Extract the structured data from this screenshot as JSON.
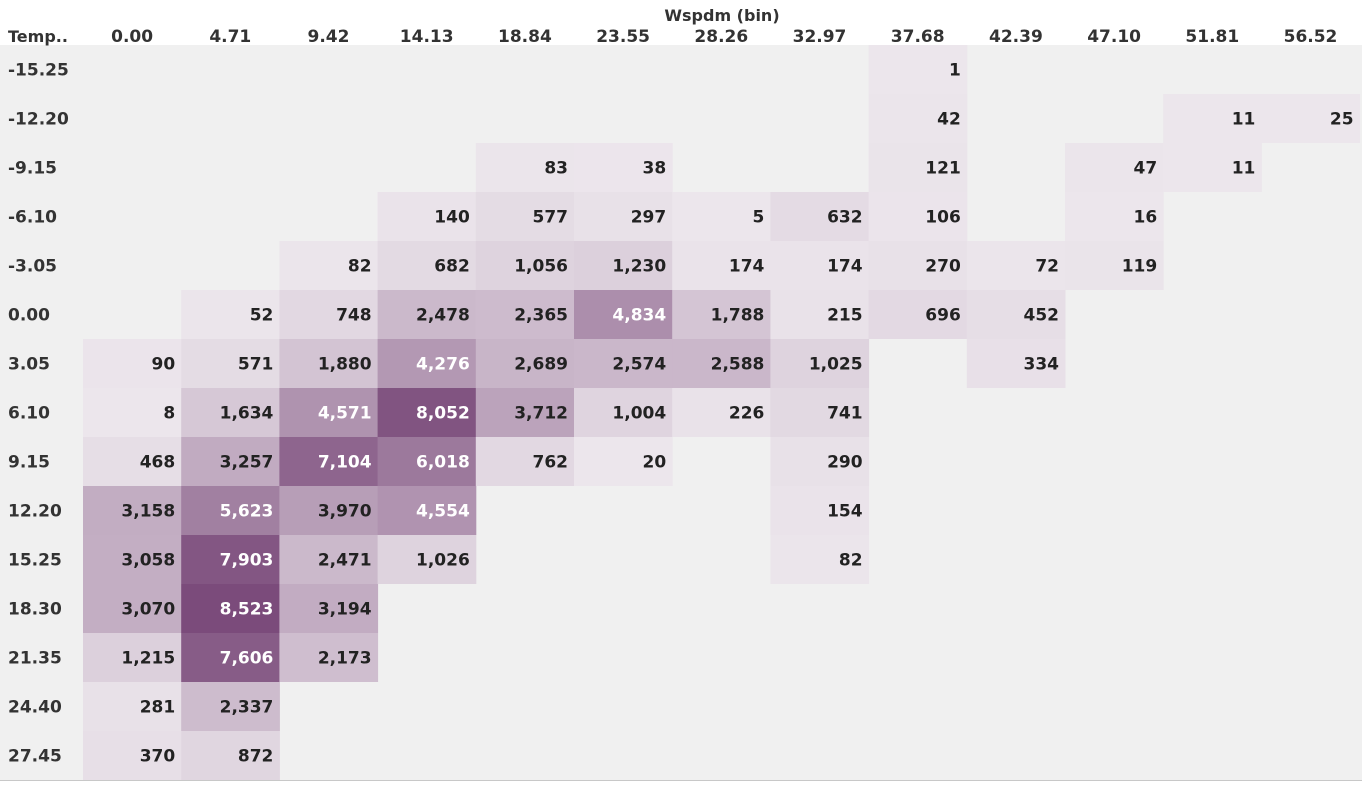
{
  "chart_data": {
    "type": "heatmap",
    "title": "",
    "xlabel": "Wspdm (bin)",
    "ylabel": "Temp..",
    "x_categories": [
      "0.00",
      "4.71",
      "9.42",
      "14.13",
      "18.84",
      "23.55",
      "28.26",
      "32.97",
      "37.68",
      "42.39",
      "47.10",
      "51.81",
      "56.52"
    ],
    "y_categories": [
      "-15.25",
      "-12.20",
      "-9.15",
      "-6.10",
      "-3.05",
      "0.00",
      "3.05",
      "6.10",
      "9.15",
      "12.20",
      "15.25",
      "18.30",
      "21.35",
      "24.40",
      "27.45"
    ],
    "values": [
      [
        null,
        null,
        null,
        null,
        null,
        null,
        null,
        null,
        1,
        null,
        null,
        null,
        null
      ],
      [
        null,
        null,
        null,
        null,
        null,
        null,
        null,
        null,
        42,
        null,
        null,
        11,
        25
      ],
      [
        null,
        null,
        null,
        null,
        83,
        38,
        null,
        null,
        121,
        null,
        47,
        11,
        null
      ],
      [
        null,
        null,
        null,
        140,
        577,
        297,
        5,
        632,
        106,
        null,
        16,
        null,
        null
      ],
      [
        null,
        null,
        82,
        682,
        1056,
        1230,
        174,
        174,
        270,
        72,
        119,
        null,
        null
      ],
      [
        null,
        52,
        748,
        2478,
        2365,
        4834,
        1788,
        215,
        696,
        452,
        null,
        null,
        null
      ],
      [
        90,
        571,
        1880,
        4276,
        2689,
        2574,
        2588,
        1025,
        null,
        334,
        null,
        null,
        null
      ],
      [
        8,
        1634,
        4571,
        8052,
        3712,
        1004,
        226,
        741,
        null,
        null,
        null,
        null,
        null
      ],
      [
        468,
        3257,
        7104,
        6018,
        762,
        20,
        null,
        290,
        null,
        null,
        null,
        null,
        null
      ],
      [
        3158,
        5623,
        3970,
        4554,
        null,
        null,
        null,
        154,
        null,
        null,
        null,
        null,
        null
      ],
      [
        3058,
        7903,
        2471,
        1026,
        null,
        null,
        null,
        82,
        null,
        null,
        null,
        null,
        null
      ],
      [
        3070,
        8523,
        3194,
        null,
        null,
        null,
        null,
        null,
        null,
        null,
        null,
        null,
        null
      ],
      [
        1215,
        7606,
        2173,
        null,
        null,
        null,
        null,
        null,
        null,
        null,
        null,
        null,
        null
      ],
      [
        281,
        2337,
        null,
        null,
        null,
        null,
        null,
        null,
        null,
        null,
        null,
        null,
        null
      ],
      [
        370,
        872,
        null,
        null,
        null,
        null,
        null,
        null,
        null,
        null,
        null,
        null,
        null
      ]
    ],
    "value_range": [
      1,
      8523
    ],
    "colors": {
      "background": "#f0f0f0",
      "low": "#ece6ec",
      "high": "#7b4b7b",
      "text_dark": "#222222",
      "text_light": "#ffffff",
      "axis_text": "#333333",
      "bottom_rule": "#c8c8c8"
    },
    "grid": false,
    "legend": "none"
  }
}
